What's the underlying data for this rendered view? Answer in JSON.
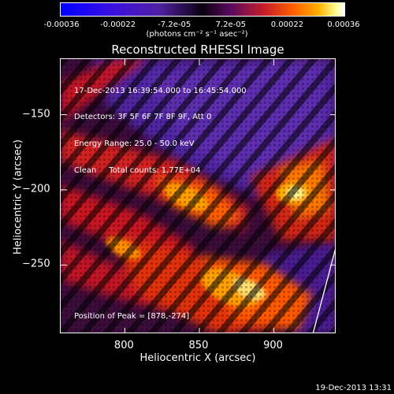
{
  "colorbar": {
    "ticks": [
      "-0.00036",
      "-0.00022",
      "-7.2e-05",
      "7.2e-05",
      "0.00022",
      "0.00036"
    ],
    "unit_label": "(photons cm⁻² s⁻¹ asec⁻²)"
  },
  "chart_data": {
    "type": "heatmap",
    "title": "Reconstructed RHESSI Image",
    "xlabel": "Heliocentric X (arcsec)",
    "ylabel": "Heliocentric Y (arcsec)",
    "xlim": [
      757,
      942
    ],
    "ylim": [
      -296,
      -113
    ],
    "xticks": [
      800,
      850,
      900
    ],
    "yticks": [
      -150,
      -200,
      -250
    ],
    "value_range": [
      -0.00036,
      0.00036
    ],
    "annotations": [
      "17-Dec-2013 16:39:54.000 to 16:45:54.000",
      "Detectors: 3F 5F 6F 7F 8F 9F, Att 0",
      "Energy Range: 25.0 - 50.0 keV",
      "Clean     Total counts: 1.77E+04"
    ],
    "peak_label": "Position of Peak = [878,-274]",
    "colors": {
      "low": "#0000ff",
      "mid": "#000000",
      "high": "#ffffff"
    }
  },
  "footer_timestamp": "19-Dec-2013 13:31"
}
